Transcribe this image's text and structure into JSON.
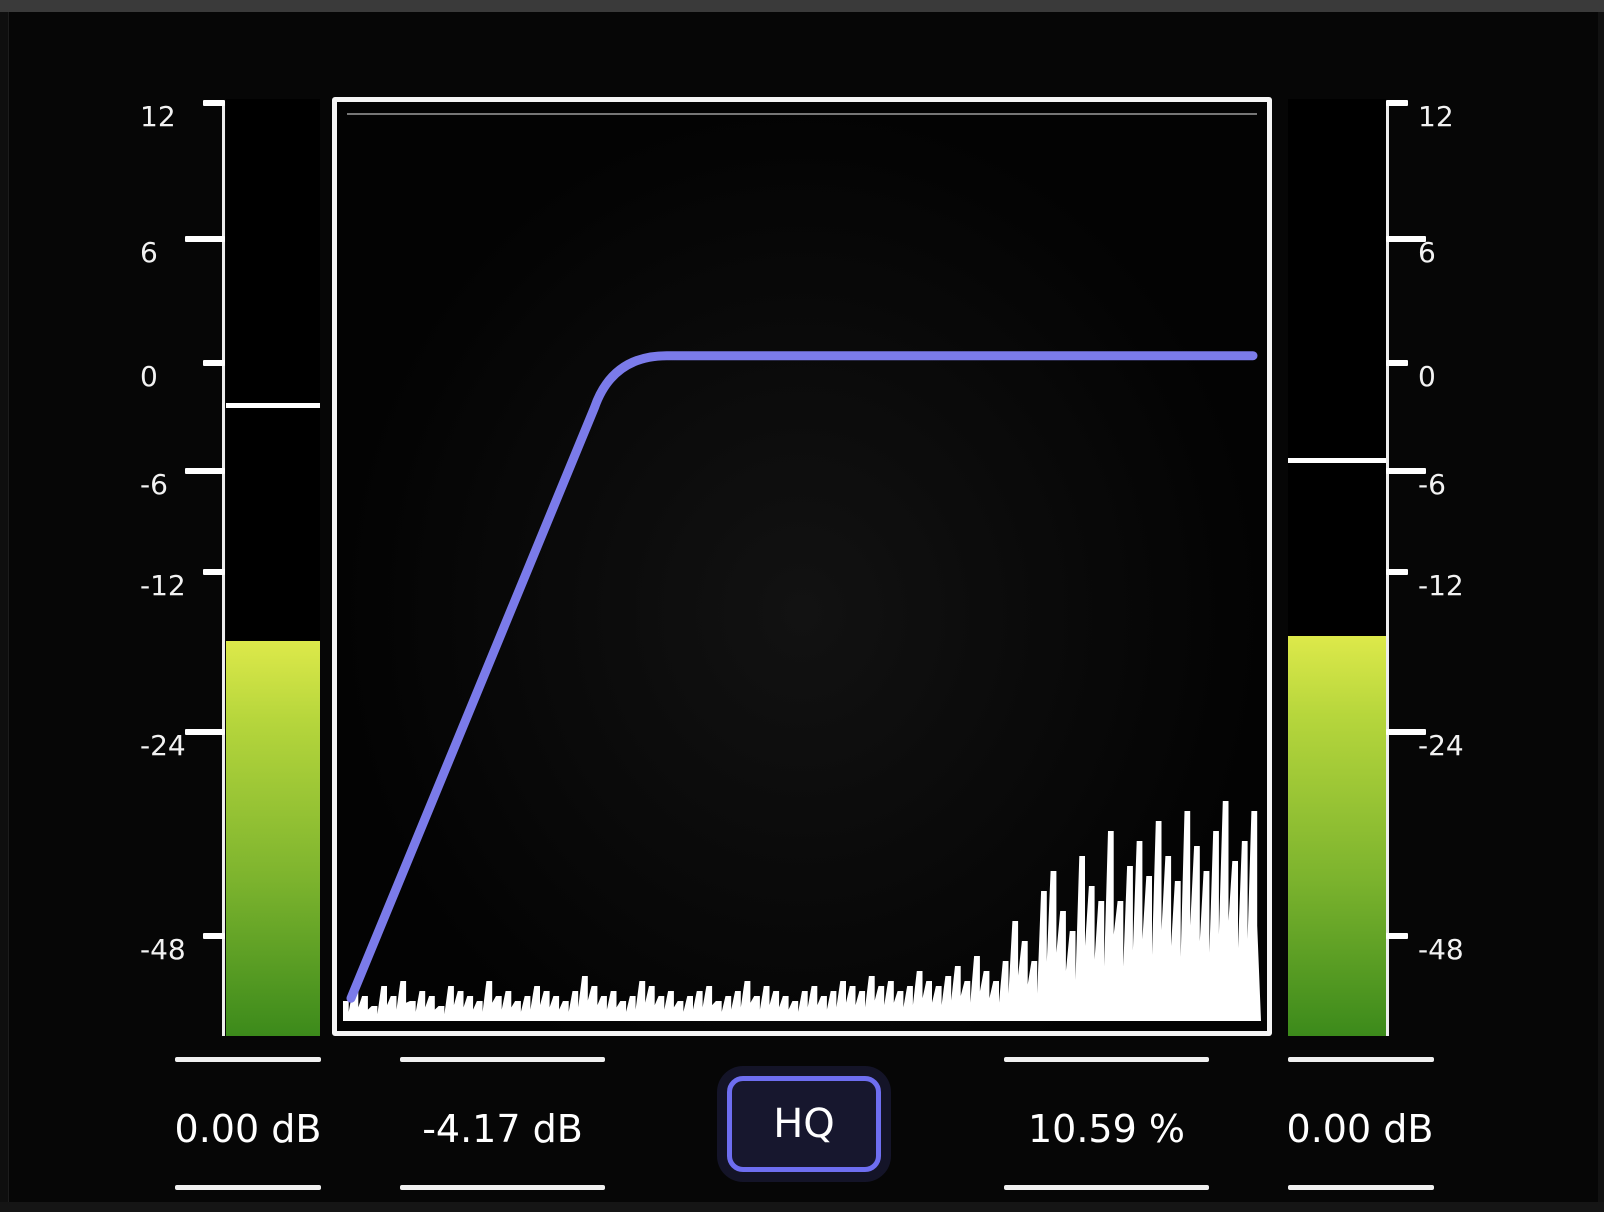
{
  "meters": {
    "input": {
      "scale_labels": [
        "12",
        "6",
        "0",
        "-6",
        "-12",
        "-24",
        "-48"
      ],
      "scale_values": [
        12,
        6,
        0,
        -6,
        -12,
        -24,
        -48
      ],
      "level_db": -17.2,
      "peak_db": -2.2,
      "readout": "0.00 dB"
    },
    "output": {
      "scale_labels": [
        "12",
        "6",
        "0",
        "-6",
        "-12",
        "-24",
        "-48"
      ],
      "scale_values": [
        12,
        6,
        0,
        -6,
        -12,
        -24,
        -48
      ],
      "level_db": -16.8,
      "peak_db": -5.3,
      "readout": "0.00 dB"
    }
  },
  "controls": {
    "gain_readout": "-4.17 dB",
    "hq_label": "HQ",
    "mix_readout": "10.59 %"
  },
  "colors": {
    "curve": "#7b7bea",
    "meter_top": "#dde94a",
    "meter_bottom": "#3c8a1b",
    "hq_border": "#6e6ef0"
  },
  "chart_data": {
    "type": "line",
    "series": [
      {
        "values": [
          -48,
          -30,
          -12,
          -5,
          -4.5,
          -4.5,
          -4.5,
          -4.5,
          -4.5
        ]
      }
    ],
    "x": [
      0,
      0.07,
      0.18,
      0.27,
      0.35,
      0.5,
      0.7,
      0.9,
      1.0
    ],
    "spectrum_magnitudes": [
      0.04,
      0.06,
      0.05,
      0.03,
      0.07,
      0.05,
      0.08,
      0.04,
      0.06,
      0.05,
      0.03,
      0.07,
      0.06,
      0.05,
      0.04,
      0.08,
      0.05,
      0.06,
      0.04,
      0.05,
      0.07,
      0.06,
      0.05,
      0.04,
      0.06,
      0.09,
      0.07,
      0.05,
      0.06,
      0.04,
      0.05,
      0.08,
      0.07,
      0.05,
      0.06,
      0.04,
      0.05,
      0.06,
      0.07,
      0.04,
      0.05,
      0.06,
      0.08,
      0.05,
      0.07,
      0.06,
      0.05,
      0.04,
      0.06,
      0.07,
      0.05,
      0.06,
      0.08,
      0.07,
      0.06,
      0.09,
      0.07,
      0.08,
      0.06,
      0.07,
      0.1,
      0.08,
      0.07,
      0.09,
      0.11,
      0.08,
      0.13,
      0.1,
      0.08,
      0.12,
      0.2,
      0.16,
      0.12,
      0.26,
      0.3,
      0.22,
      0.18,
      0.33,
      0.27,
      0.24,
      0.38,
      0.24,
      0.31,
      0.36,
      0.29,
      0.4,
      0.33,
      0.28,
      0.42,
      0.35,
      0.3,
      0.38,
      0.44,
      0.32,
      0.36,
      0.42
    ]
  }
}
